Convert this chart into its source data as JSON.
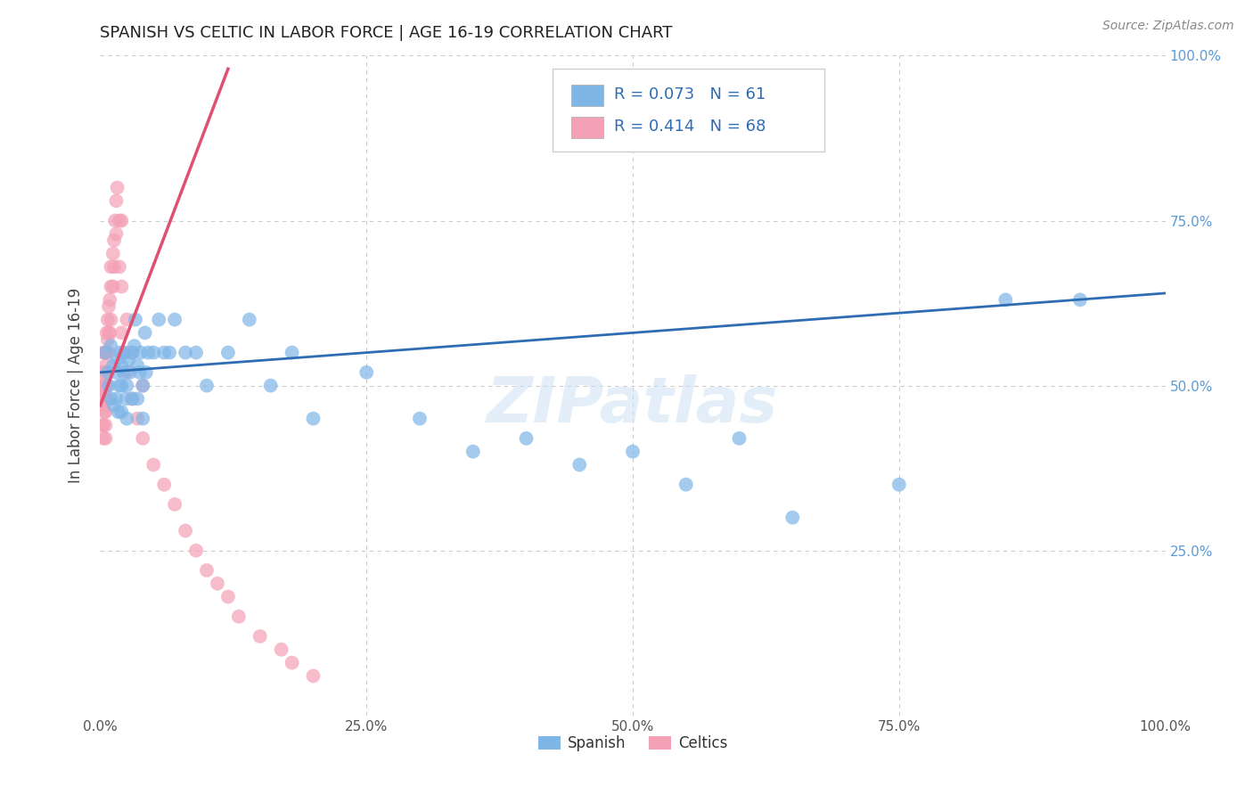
{
  "title": "SPANISH VS CELTIC IN LABOR FORCE | AGE 16-19 CORRELATION CHART",
  "source": "Source: ZipAtlas.com",
  "ylabel": "In Labor Force | Age 16-19",
  "watermark": "ZIPatlas",
  "legend_blue_r": "R = 0.073",
  "legend_blue_n": "N = 61",
  "legend_pink_r": "R = 0.414",
  "legend_pink_n": "N = 68",
  "legend_blue_label": "Spanish",
  "legend_pink_label": "Celtics",
  "blue_color": "#7EB6E8",
  "pink_color": "#F4A0B5",
  "trend_blue_color": "#2E6DB4",
  "trend_pink_color": "#E05070",
  "xlim": [
    0,
    1
  ],
  "ylim": [
    0,
    1
  ],
  "background_color": "#FFFFFF",
  "grid_color": "#CCCCCC",
  "title_fontsize": 13,
  "right_tick_color": "#5B9BD5",
  "blue_x": [
    0.005,
    0.007,
    0.008,
    0.01,
    0.01,
    0.012,
    0.013,
    0.015,
    0.015,
    0.016,
    0.017,
    0.018,
    0.019,
    0.02,
    0.02,
    0.02,
    0.022,
    0.023,
    0.024,
    0.025,
    0.025,
    0.027,
    0.028,
    0.03,
    0.03,
    0.032,
    0.033,
    0.035,
    0.035,
    0.037,
    0.038,
    0.04,
    0.04,
    0.042,
    0.043,
    0.045,
    0.05,
    0.055,
    0.06,
    0.065,
    0.07,
    0.08,
    0.09,
    0.1,
    0.12,
    0.14,
    0.16,
    0.18,
    0.2,
    0.25,
    0.3,
    0.35,
    0.4,
    0.45,
    0.5,
    0.55,
    0.6,
    0.65,
    0.75,
    0.85,
    0.92
  ],
  "blue_y": [
    0.55,
    0.52,
    0.5,
    0.56,
    0.48,
    0.53,
    0.47,
    0.52,
    0.48,
    0.54,
    0.46,
    0.5,
    0.55,
    0.5,
    0.46,
    0.53,
    0.52,
    0.55,
    0.48,
    0.5,
    0.45,
    0.54,
    0.52,
    0.55,
    0.48,
    0.56,
    0.6,
    0.53,
    0.48,
    0.52,
    0.55,
    0.5,
    0.45,
    0.58,
    0.52,
    0.55,
    0.55,
    0.6,
    0.55,
    0.55,
    0.6,
    0.55,
    0.55,
    0.5,
    0.55,
    0.6,
    0.5,
    0.55,
    0.45,
    0.52,
    0.45,
    0.4,
    0.42,
    0.38,
    0.4,
    0.35,
    0.42,
    0.3,
    0.35,
    0.63,
    0.63
  ],
  "pink_x": [
    0.001,
    0.001,
    0.002,
    0.002,
    0.002,
    0.003,
    0.003,
    0.003,
    0.003,
    0.003,
    0.004,
    0.004,
    0.004,
    0.004,
    0.005,
    0.005,
    0.005,
    0.005,
    0.005,
    0.005,
    0.005,
    0.006,
    0.006,
    0.006,
    0.007,
    0.007,
    0.008,
    0.008,
    0.008,
    0.009,
    0.009,
    0.01,
    0.01,
    0.01,
    0.012,
    0.012,
    0.013,
    0.013,
    0.014,
    0.015,
    0.015,
    0.016,
    0.018,
    0.018,
    0.02,
    0.02,
    0.02,
    0.022,
    0.025,
    0.025,
    0.03,
    0.03,
    0.035,
    0.04,
    0.04,
    0.05,
    0.06,
    0.07,
    0.08,
    0.09,
    0.1,
    0.11,
    0.12,
    0.13,
    0.15,
    0.17,
    0.18,
    0.2
  ],
  "pink_y": [
    0.5,
    0.47,
    0.52,
    0.48,
    0.44,
    0.55,
    0.5,
    0.47,
    0.44,
    0.42,
    0.55,
    0.52,
    0.49,
    0.46,
    0.55,
    0.53,
    0.5,
    0.48,
    0.46,
    0.44,
    0.42,
    0.58,
    0.55,
    0.5,
    0.6,
    0.57,
    0.62,
    0.58,
    0.55,
    0.63,
    0.58,
    0.68,
    0.65,
    0.6,
    0.7,
    0.65,
    0.72,
    0.68,
    0.75,
    0.78,
    0.73,
    0.8,
    0.75,
    0.68,
    0.75,
    0.65,
    0.58,
    0.55,
    0.6,
    0.52,
    0.55,
    0.48,
    0.45,
    0.5,
    0.42,
    0.38,
    0.35,
    0.32,
    0.28,
    0.25,
    0.22,
    0.2,
    0.18,
    0.15,
    0.12,
    0.1,
    0.08,
    0.06
  ],
  "pink_trend_x": [
    0.0,
    0.12
  ],
  "pink_trend_y": [
    0.47,
    0.98
  ],
  "blue_trend_x": [
    0.0,
    1.0
  ],
  "blue_trend_y": [
    0.52,
    0.64
  ]
}
